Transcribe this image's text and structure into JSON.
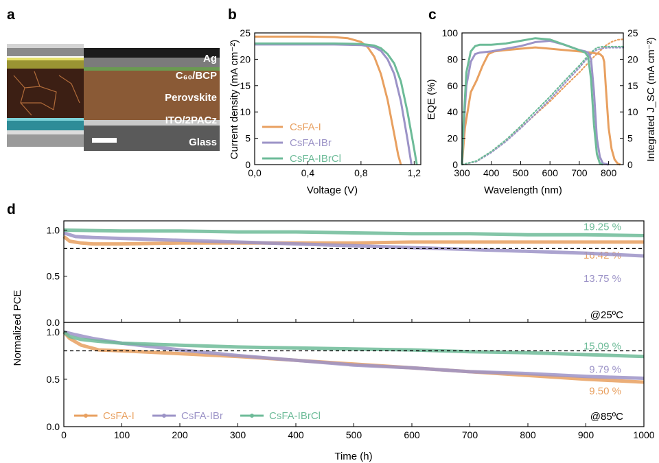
{
  "colors": {
    "orange": "#E8A060",
    "purple": "#9C93C7",
    "green": "#6DBB98"
  },
  "panel_a": {
    "label": "a",
    "layers": [
      "Ag",
      "C₆₀/BCP",
      "Perovskite",
      "ITO/2PACz",
      "Glass"
    ],
    "layer_colors": [
      "#b9b9b9",
      "#c7c048",
      "#3c1f14",
      "#3a9aa6",
      "#c4c4c4"
    ]
  },
  "chart_data": [
    {
      "panel": "b",
      "type": "line",
      "xlabel": "Voltage (V)",
      "ylabel": "Current density (mA cm⁻²)",
      "xlim": [
        0,
        1.25
      ],
      "ylim": [
        0,
        25
      ],
      "xticks": [
        "0,0",
        "0,4",
        "0,8",
        "1,2"
      ],
      "xtick_values": [
        0,
        0.4,
        0.8,
        1.2
      ],
      "yticks": [
        "0",
        "5",
        "10",
        "15",
        "20",
        "25"
      ],
      "ytick_values": [
        0,
        5,
        10,
        15,
        20,
        25
      ],
      "legend_position": "bottom-left",
      "series": [
        {
          "name": "CsFA-I",
          "color": "#E8A060",
          "x": [
            0,
            0.2,
            0.4,
            0.6,
            0.7,
            0.8,
            0.85,
            0.9,
            0.95,
            1.0,
            1.05,
            1.08,
            1.1
          ],
          "y": [
            24.3,
            24.3,
            24.3,
            24.2,
            24.0,
            23.3,
            22.3,
            20.5,
            17.2,
            12.3,
            5.8,
            1.8,
            0
          ]
        },
        {
          "name": "CsFA-IBr",
          "color": "#9C93C7",
          "x": [
            0,
            0.2,
            0.4,
            0.6,
            0.8,
            0.9,
            0.95,
            1.0,
            1.05,
            1.1,
            1.15,
            1.18
          ],
          "y": [
            22.8,
            22.8,
            22.8,
            22.8,
            22.7,
            22.3,
            21.6,
            20.0,
            17.2,
            12.0,
            4.8,
            0
          ]
        },
        {
          "name": "CsFA-IBrCl",
          "color": "#6DBB98",
          "x": [
            0,
            0.2,
            0.4,
            0.6,
            0.8,
            0.9,
            0.95,
            1.0,
            1.05,
            1.1,
            1.15,
            1.2,
            1.22
          ],
          "y": [
            23.0,
            23.0,
            23.0,
            23.0,
            22.9,
            22.6,
            22.1,
            21.0,
            19.2,
            15.8,
            10.0,
            3.0,
            0
          ]
        }
      ]
    },
    {
      "panel": "c",
      "type": "line",
      "xlabel": "Wavelength (nm)",
      "ylabel": "EQE (%)",
      "ylabel_right": "Integrated J_SC (mA cm⁻²)",
      "xlim": [
        300,
        850
      ],
      "ylim": [
        0,
        100
      ],
      "ylim_right": [
        0,
        25
      ],
      "xticks": [
        "300",
        "400",
        "500",
        "600",
        "700",
        "800"
      ],
      "xtick_values": [
        300,
        400,
        500,
        600,
        700,
        800
      ],
      "yticks": [
        "0",
        "20",
        "40",
        "60",
        "80",
        "100"
      ],
      "ytick_values": [
        0,
        20,
        40,
        60,
        80,
        100
      ],
      "yticks_right": [
        "0",
        "5",
        "10",
        "15",
        "20",
        "25"
      ],
      "ytick_values_right": [
        0,
        5,
        10,
        15,
        20,
        25
      ],
      "series": [
        {
          "name": "CsFA-I",
          "color": "#E8A060",
          "x": [
            300,
            310,
            330,
            350,
            370,
            390,
            410,
            450,
            500,
            550,
            600,
            650,
            700,
            740,
            770,
            780,
            785,
            790,
            800,
            810,
            820,
            830,
            840
          ],
          "y": [
            0,
            28,
            55,
            64,
            75,
            84,
            86,
            87,
            88,
            89,
            88,
            87,
            86,
            85,
            84,
            82,
            78,
            60,
            28,
            12,
            4,
            1,
            0
          ]
        },
        {
          "name": "CsFA-IBr",
          "color": "#9C93C7",
          "x": [
            300,
            305,
            315,
            330,
            345,
            360,
            400,
            450,
            500,
            550,
            600,
            650,
            700,
            720,
            730,
            740,
            750,
            760,
            770,
            780,
            800
          ],
          "y": [
            0,
            25,
            60,
            78,
            84,
            85,
            86,
            88,
            90,
            93,
            94,
            91,
            87,
            86,
            85,
            80,
            55,
            20,
            6,
            1,
            0
          ]
        },
        {
          "name": "CsFA-IBrCl",
          "color": "#6DBB98",
          "x": [
            300,
            305,
            315,
            330,
            345,
            360,
            400,
            450,
            500,
            550,
            600,
            650,
            700,
            720,
            730,
            740,
            750,
            760,
            770,
            780
          ],
          "y": [
            0,
            30,
            70,
            86,
            90,
            91,
            91,
            92,
            94,
            96,
            95,
            91,
            87,
            85,
            82,
            65,
            30,
            8,
            1,
            0
          ]
        }
      ],
      "series_right": [
        {
          "name": "CsFA-I",
          "color": "#E8A060",
          "x": [
            300,
            350,
            400,
            450,
            500,
            550,
            600,
            650,
            700,
            750,
            790,
            810,
            830,
            850
          ],
          "y": [
            0,
            0.6,
            2.4,
            4.5,
            7.0,
            9.5,
            12.0,
            14.8,
            17.5,
            20.5,
            22.6,
            23.3,
            23.7,
            23.8
          ]
        },
        {
          "name": "CsFA-IBr",
          "color": "#9C93C7",
          "x": [
            300,
            350,
            400,
            450,
            500,
            550,
            600,
            650,
            700,
            740,
            760,
            780,
            800,
            850
          ],
          "y": [
            0,
            0.6,
            2.3,
            4.4,
            6.9,
            9.6,
            12.4,
            15.4,
            18.4,
            21.0,
            21.8,
            22.1,
            22.2,
            22.2
          ]
        },
        {
          "name": "CsFA-IBrCl",
          "color": "#6DBB98",
          "x": [
            300,
            350,
            400,
            450,
            500,
            550,
            600,
            650,
            700,
            740,
            760,
            780,
            850
          ],
          "y": [
            0,
            0.7,
            2.5,
            4.7,
            7.3,
            10.1,
            12.9,
            15.9,
            18.8,
            21.3,
            22.2,
            22.4,
            22.4
          ]
        }
      ]
    },
    {
      "panel": "d-top",
      "type": "line",
      "condition": "@25ºC",
      "xlim": [
        0,
        1000
      ],
      "ylim": [
        0,
        1.1
      ],
      "yticks": [
        "0.0",
        "0.5",
        "1.0"
      ],
      "ytick_values": [
        0,
        0.5,
        1.0
      ],
      "reference_line": 0.8,
      "series": [
        {
          "name": "CsFA-I",
          "color": "#E8A060",
          "x": [
            0,
            10,
            30,
            50,
            100,
            200,
            300,
            400,
            500,
            600,
            700,
            800,
            900,
            1000
          ],
          "y": [
            0.93,
            0.88,
            0.86,
            0.85,
            0.85,
            0.86,
            0.86,
            0.86,
            0.86,
            0.87,
            0.87,
            0.87,
            0.87,
            0.87
          ],
          "label": "16.42 %"
        },
        {
          "name": "CsFA-IBr",
          "color": "#9C93C7",
          "x": [
            0,
            20,
            50,
            100,
            200,
            300,
            400,
            500,
            600,
            700,
            800,
            900,
            1000
          ],
          "y": [
            0.97,
            0.93,
            0.92,
            0.91,
            0.89,
            0.87,
            0.85,
            0.83,
            0.81,
            0.79,
            0.77,
            0.75,
            0.72
          ],
          "label": "13.75 %"
        },
        {
          "name": "CsFA-IBrCl",
          "color": "#6DBB98",
          "x": [
            0,
            100,
            200,
            300,
            400,
            500,
            600,
            700,
            800,
            900,
            1000
          ],
          "y": [
            1.0,
            0.99,
            0.99,
            0.98,
            0.98,
            0.97,
            0.96,
            0.96,
            0.95,
            0.95,
            0.94
          ],
          "label": "19.25 %"
        }
      ]
    },
    {
      "panel": "d-bottom",
      "type": "line",
      "condition": "@85ºC",
      "xlabel": "Time (h)",
      "ylabel": "Normalized PCE",
      "xlim": [
        0,
        1000
      ],
      "ylim": [
        0,
        1.1
      ],
      "xticks": [
        "0",
        "100",
        "200",
        "300",
        "400",
        "500",
        "600",
        "700",
        "800",
        "900",
        "1000"
      ],
      "xtick_values": [
        0,
        100,
        200,
        300,
        400,
        500,
        600,
        700,
        800,
        900,
        1000
      ],
      "yticks": [
        "0.0",
        "0.5",
        "1.0"
      ],
      "ytick_values": [
        0,
        0.5,
        1.0
      ],
      "reference_line": 0.8,
      "legend_position": "bottom-left",
      "series": [
        {
          "name": "CsFA-I",
          "color": "#E8A060",
          "x": [
            0,
            10,
            30,
            60,
            100,
            200,
            300,
            400,
            500,
            600,
            700,
            800,
            900,
            1000
          ],
          "y": [
            1.0,
            0.93,
            0.86,
            0.81,
            0.8,
            0.77,
            0.74,
            0.7,
            0.66,
            0.62,
            0.58,
            0.54,
            0.5,
            0.47
          ],
          "label": "9.50 %"
        },
        {
          "name": "CsFA-IBr",
          "color": "#9C93C7",
          "x": [
            0,
            20,
            50,
            100,
            200,
            300,
            400,
            500,
            600,
            700,
            800,
            900,
            1000
          ],
          "y": [
            1.0,
            0.97,
            0.93,
            0.88,
            0.81,
            0.75,
            0.7,
            0.65,
            0.62,
            0.58,
            0.56,
            0.53,
            0.51
          ],
          "label": "9.79 %"
        },
        {
          "name": "CsFA-IBrCl",
          "color": "#6DBB98",
          "x": [
            0,
            10,
            30,
            60,
            100,
            200,
            300,
            400,
            500,
            600,
            700,
            800,
            900,
            1000
          ],
          "y": [
            1.0,
            0.95,
            0.92,
            0.9,
            0.88,
            0.86,
            0.84,
            0.83,
            0.82,
            0.81,
            0.79,
            0.78,
            0.76,
            0.74
          ],
          "label": "15.09 %"
        }
      ]
    }
  ]
}
